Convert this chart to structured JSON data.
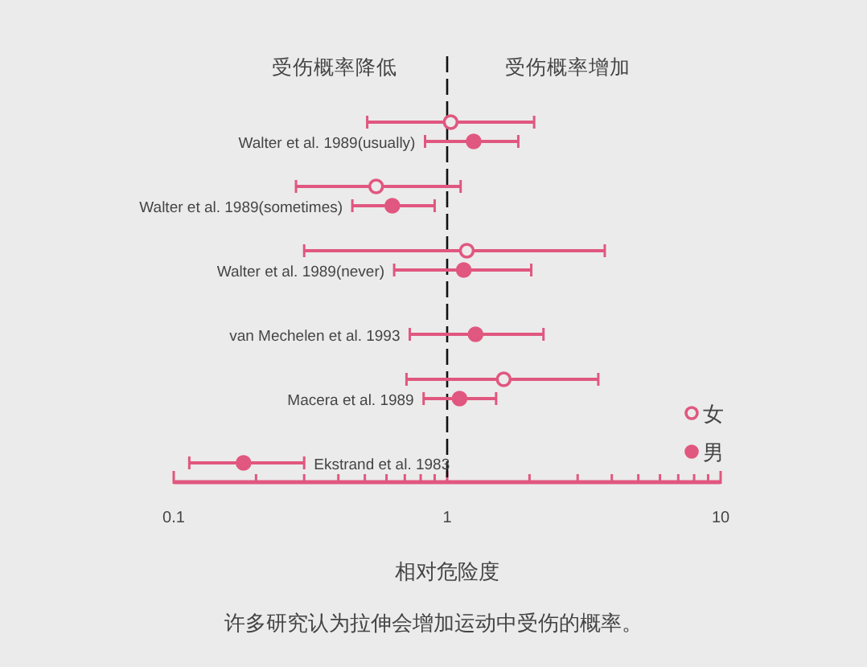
{
  "chart_data": {
    "type": "scatter",
    "orientation": "horizontal",
    "xlabel": "相对危险度",
    "categories": [
      "Walter et al. 1989(usually)",
      "Walter et al. 1989(sometimes)",
      "Walter et al. 1989(never)",
      "van Mechelen et al. 1993",
      "Macera et al. 1989",
      "Ekstrand et al. 1983"
    ],
    "series": [
      {
        "name": "女",
        "color": "#e0577f",
        "values": [
          1.03,
          0.55,
          1.18,
          null,
          1.61,
          null
        ],
        "errors": [
          [
            0.51,
            2.08
          ],
          [
            0.28,
            1.12
          ],
          [
            0.3,
            3.77
          ],
          null,
          [
            0.71,
            3.57
          ],
          null
        ]
      },
      {
        "name": "男",
        "color": "#e0577f",
        "values": [
          1.25,
          0.63,
          1.15,
          1.27,
          1.11,
          0.18
        ],
        "errors": [
          [
            0.83,
            1.82
          ],
          [
            0.45,
            0.9
          ],
          [
            0.64,
            2.03
          ],
          [
            0.73,
            2.25
          ],
          [
            0.82,
            1.51
          ],
          [
            0.114,
            0.3
          ]
        ]
      }
    ],
    "xlim": [
      0.1,
      10
    ],
    "xticks": [
      0.1,
      1,
      10
    ],
    "log": "x",
    "marker": "circle",
    "legend": "bottom right",
    "grid": false,
    "tick_labels": "x",
    "ref_lines": [
      {
        "axis": "x",
        "value": 1,
        "color": "#111111",
        "line_style": "dashed"
      }
    ],
    "annotations": [
      "受伤概率降低",
      "受伤概率增加",
      "许多研究认为拉伸会增加运动中受伤的概率。"
    ]
  }
}
